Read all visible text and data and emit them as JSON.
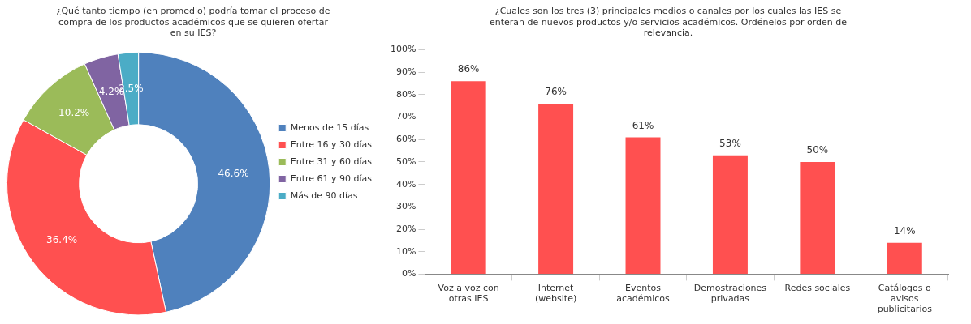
{
  "chart_data": [
    {
      "type": "donut",
      "title": "¿Qué tanto tiempo (en promedio) podría tomar el proceso de compra de los productos académicos que se quieren ofertar en su IES?",
      "categories": [
        "Menos de 15 días",
        "Entre 16 y 30 días",
        "Entre 31 y 60 días",
        "Entre 61 y 90 días",
        "Más de 90 días"
      ],
      "values": [
        46.6,
        36.4,
        10.2,
        4.2,
        2.5
      ],
      "value_labels": [
        "46.6%",
        "36.4%",
        "10.2%",
        "4.2%",
        "2.5%"
      ],
      "colors": [
        "#4f81bd",
        "#ff5050",
        "#9bbb59",
        "#8064a2",
        "#4bacc6"
      ],
      "legend": "right"
    },
    {
      "type": "bar",
      "title": "¿Cuales son los tres (3) principales medios o canales por los cuales las IES se enteran de nuevos productos y/o servicios académicos. Ordénelos por orden de relevancia.",
      "categories": [
        "Voz a voz con otras IES",
        "Internet (website)",
        "Eventos académicos",
        "Demostraciones privadas",
        "Redes sociales",
        "Catálogos o avisos publicitarios"
      ],
      "values": [
        86,
        76,
        61,
        53,
        50,
        14
      ],
      "value_labels": [
        "86%",
        "76%",
        "61%",
        "53%",
        "50%",
        "14%"
      ],
      "color": "#ff5050",
      "ylim": [
        0,
        100
      ],
      "yticks": [
        {
          "value": 0,
          "label": "0%"
        },
        {
          "value": 10,
          "label": "10%"
        },
        {
          "value": 20,
          "label": "20%"
        },
        {
          "value": 30,
          "label": "30%"
        },
        {
          "value": 40,
          "label": "40%"
        },
        {
          "value": 50,
          "label": "50%"
        },
        {
          "value": 60,
          "label": "60%"
        },
        {
          "value": 70,
          "label": "70%"
        },
        {
          "value": 80,
          "label": "80%"
        },
        {
          "value": 90,
          "label": "90%"
        },
        {
          "value": 100,
          "label": "100%"
        }
      ],
      "grid": false,
      "legend": false
    }
  ]
}
